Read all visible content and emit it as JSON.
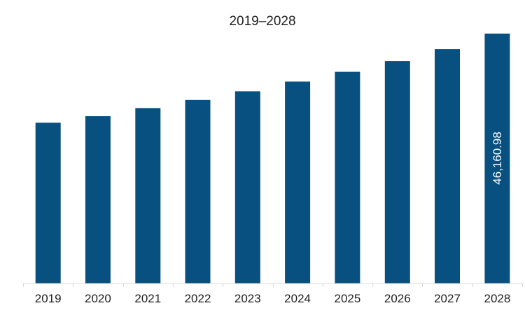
{
  "chart_data": {
    "type": "bar",
    "title": "2019–2028",
    "xlabel": "",
    "ylabel": "",
    "categories": [
      "2019",
      "2020",
      "2021",
      "2022",
      "2023",
      "2024",
      "2025",
      "2026",
      "2027",
      "2028"
    ],
    "values": [
      29700,
      30900,
      32400,
      33900,
      35500,
      37300,
      39100,
      41100,
      43300,
      46160.98
    ],
    "data_labels": [
      "",
      "",
      "",
      "",
      "",
      "",
      "",
      "",
      "",
      "46,160.98"
    ],
    "ylim": [
      0,
      46160.98
    ],
    "grid": false,
    "legend": "none",
    "colors": {
      "bar": "#08507f"
    }
  }
}
